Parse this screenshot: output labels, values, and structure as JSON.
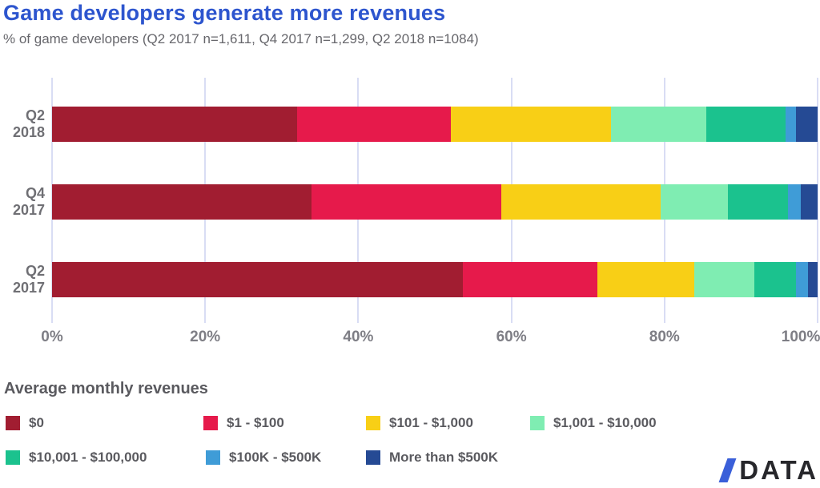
{
  "chart_data": {
    "type": "bar",
    "orientation": "horizontal",
    "stacked": true,
    "title": "Game developers generate more revenues",
    "subtitle": "% of game developers (Q2 2017 n=1,611, Q4 2017 n=1,299, Q2 2018 n=1084)",
    "unit": "% of game developers",
    "categories": [
      "Q2 2018",
      "Q4 2017",
      "Q2 2017"
    ],
    "x_axis": {
      "ticks": [
        "0%",
        "20%",
        "40%",
        "60%",
        "80%",
        "100%"
      ],
      "range": [
        0,
        100
      ],
      "grid": true
    },
    "series": [
      {
        "name": "$0",
        "color": "#A11D31",
        "values": [
          32.0,
          33.9,
          53.7
        ]
      },
      {
        "name": "$1 - $100",
        "color": "#E61A4B",
        "values": [
          20.1,
          24.8,
          17.5
        ]
      },
      {
        "name": "$101 - $1,000",
        "color": "#F8CF16",
        "values": [
          20.9,
          20.8,
          12.7
        ]
      },
      {
        "name": "$1,001 - $10,000",
        "color": "#7FEDB2",
        "values": [
          12.5,
          8.8,
          7.8
        ]
      },
      {
        "name": "$10,001 - $100,000",
        "color": "#1BC28E",
        "values": [
          10.3,
          7.8,
          5.5
        ]
      },
      {
        "name": "$100K - $500K",
        "color": "#3F9CD7",
        "values": [
          1.4,
          1.7,
          1.5
        ]
      },
      {
        "name": "More than $500K",
        "color": "#254A94",
        "values": [
          2.8,
          2.2,
          1.3
        ]
      }
    ],
    "legend": {
      "title": "Average monthly revenues",
      "position": "bottom"
    }
  },
  "theme": {
    "title_color": "#2D55CE",
    "subtitle_color": "#67676C",
    "axis_text_color": "#7E7E85",
    "grid_color": "#D9DDF4",
    "background": "#FFFFFF"
  },
  "logo": {
    "text": "DATA",
    "slash_color": "#3A5FD9",
    "text_color": "#27272B"
  }
}
